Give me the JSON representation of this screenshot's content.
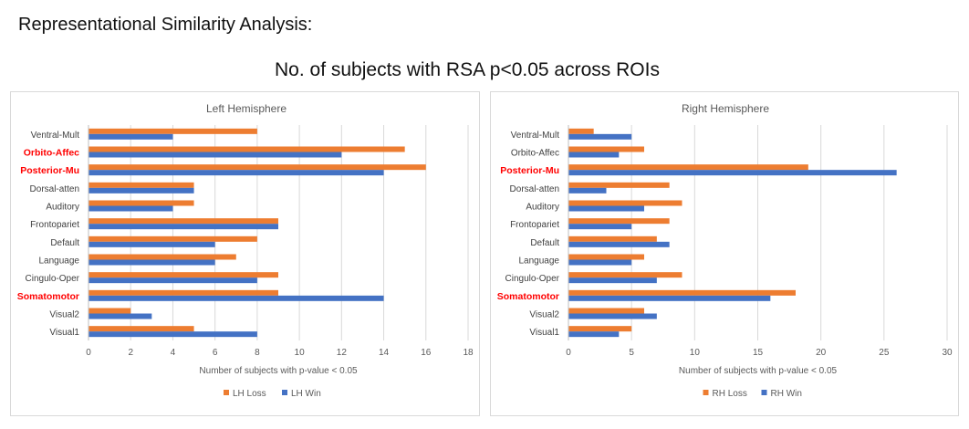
{
  "heading": "Representational Similarity Analysis:",
  "supertitle": "No. of subjects with RSA p<0.05 across ROIs",
  "colors": {
    "loss": "#ED7D31",
    "win": "#4472C4",
    "highlight": "#FF0000",
    "grid": "#d9d9d9"
  },
  "chart_data": [
    {
      "type": "bar",
      "orientation": "horizontal",
      "title": "Left Hemisphere",
      "xlabel": "Number of subjects with p-value < 0.05",
      "ylabel": "",
      "xlim": [
        0,
        18
      ],
      "xticks": [
        "0",
        "2",
        "4",
        "6",
        "8",
        "10",
        "12",
        "14",
        "16",
        "18"
      ],
      "grid": true,
      "legend_position": "bottom",
      "categories": [
        "Ventral-Mult",
        "Orbito-Affec",
        "Posterior-Mu",
        "Dorsal-atten",
        "Auditory",
        "Frontopariet",
        "Default",
        "Language",
        "Cingulo-Oper",
        "Somatomotor",
        "Visual2",
        "Visual1"
      ],
      "highlighted": [
        "Orbito-Affec",
        "Posterior-Mu",
        "Somatomotor"
      ],
      "series": [
        {
          "name": "LH Loss",
          "values": [
            8,
            15,
            16,
            5,
            5,
            9,
            8,
            7,
            9,
            9,
            2,
            5
          ]
        },
        {
          "name": "LH Win",
          "values": [
            4,
            12,
            14,
            5,
            4,
            9,
            6,
            6,
            8,
            14,
            3,
            8
          ]
        }
      ]
    },
    {
      "type": "bar",
      "orientation": "horizontal",
      "title": "Right Hemisphere",
      "xlabel": "Number of subjects with p-value < 0.05",
      "ylabel": "",
      "xlim": [
        0,
        30
      ],
      "xticks": [
        "0",
        "5",
        "10",
        "15",
        "20",
        "25",
        "30"
      ],
      "grid": true,
      "legend_position": "bottom",
      "categories": [
        "Ventral-Mult",
        "Orbito-Affec",
        "Posterior-Mu",
        "Dorsal-atten",
        "Auditory",
        "Frontopariet",
        "Default",
        "Language",
        "Cingulo-Oper",
        "Somatomotor",
        "Visual2",
        "Visual1"
      ],
      "highlighted": [
        "Posterior-Mu",
        "Somatomotor"
      ],
      "series": [
        {
          "name": "RH Loss",
          "values": [
            2,
            6,
            19,
            8,
            9,
            8,
            7,
            6,
            9,
            18,
            6,
            5
          ]
        },
        {
          "name": "RH Win",
          "values": [
            5,
            4,
            26,
            3,
            6,
            5,
            8,
            5,
            7,
            16,
            7,
            4
          ]
        }
      ]
    }
  ]
}
